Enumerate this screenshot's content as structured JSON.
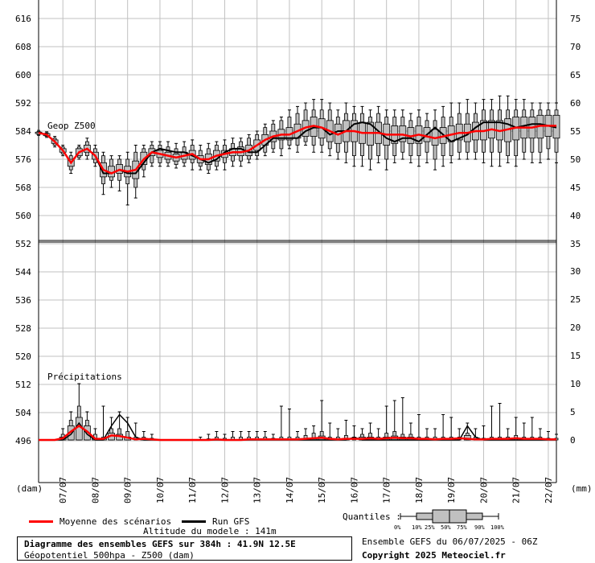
{
  "chart_data": {
    "type": "boxplot-ensemble",
    "xlabel_left": "(dam)",
    "xlabel_right": "(mm)",
    "x_tick_labels": [
      "07/07",
      "08/07",
      "09/07",
      "10/07",
      "11/07",
      "12/07",
      "13/07",
      "14/07",
      "15/07",
      "16/07",
      "17/07",
      "18/07",
      "19/07",
      "20/07",
      "21/07",
      "22/07"
    ],
    "left_axis_ticks": [
      616,
      608,
      600,
      592,
      584,
      576,
      568,
      560,
      552,
      544,
      536,
      528,
      520,
      512,
      504,
      496
    ],
    "right_axis_ticks_top": [
      75,
      70,
      65,
      60,
      55,
      50,
      45,
      40,
      35
    ],
    "right_axis_ticks_bottom": [
      30,
      25,
      20,
      15,
      10,
      5,
      0
    ],
    "left_ylim": [
      490,
      620
    ],
    "right_top_ylim": [
      35,
      75
    ],
    "right_bottom_ylim": [
      0,
      35
    ],
    "grid": true,
    "geop": {
      "label": "Geop Z500",
      "unit": "dam",
      "times_h": [
        0,
        6,
        12,
        18,
        24,
        30,
        36,
        42,
        48,
        54,
        60,
        66,
        72,
        78,
        84,
        90,
        96,
        102,
        108,
        114,
        120,
        126,
        132,
        138,
        144,
        150,
        156,
        162,
        168,
        174,
        180,
        186,
        192,
        198,
        204,
        210,
        216,
        222,
        228,
        234,
        240,
        246,
        252,
        258,
        264,
        270,
        276,
        282,
        288,
        294,
        300,
        306,
        312,
        318,
        324,
        330,
        336,
        342,
        348,
        354,
        360,
        366,
        372,
        378,
        384
      ],
      "mean": [
        583.5,
        583,
        581,
        578.5,
        575,
        578,
        579,
        577,
        573,
        572,
        573,
        572.5,
        573,
        576,
        578,
        577.5,
        577,
        576.5,
        577,
        577.5,
        576,
        576,
        577,
        577.5,
        578,
        578,
        578.5,
        580,
        581.5,
        582.5,
        583,
        583,
        584,
        585,
        585.5,
        585,
        584,
        583,
        584,
        584,
        583.5,
        583.5,
        583.5,
        583,
        583,
        583,
        582.5,
        583,
        582.5,
        582,
        582.5,
        583,
        583.5,
        583.5,
        584,
        584,
        584.5,
        584,
        584.5,
        585,
        585,
        585,
        585.5,
        585.5,
        585.5
      ],
      "gfs": [
        583.5,
        583,
        581,
        578.5,
        575,
        578,
        579,
        577,
        572,
        572,
        573,
        572,
        572,
        575,
        578,
        579,
        578.5,
        578,
        578,
        577,
        576,
        575,
        576,
        578,
        579,
        579,
        578,
        578,
        580,
        582,
        582,
        582,
        582,
        584,
        585,
        585,
        583,
        584,
        584,
        586,
        586.5,
        586,
        584,
        582,
        581,
        582,
        582,
        581,
        583,
        585,
        583,
        581,
        582,
        583,
        585,
        586.5,
        586.5,
        586.5,
        586,
        585,
        585.5,
        586,
        586,
        585.5,
        585
      ],
      "q10": [
        583,
        582.5,
        580,
        577.5,
        573,
        576.5,
        577,
        575,
        569,
        570,
        570,
        569,
        568,
        573,
        575,
        575,
        575,
        574.5,
        575,
        575,
        574,
        573,
        574,
        575,
        575.5,
        575.5,
        576,
        577,
        578,
        579,
        579,
        580,
        580,
        581,
        580,
        580,
        579,
        578,
        578,
        577,
        577,
        576,
        577,
        576,
        577,
        578,
        577,
        577,
        578,
        576,
        577,
        577,
        578,
        578,
        578,
        578,
        578,
        578,
        577,
        577,
        578,
        578,
        578,
        579,
        578
      ],
      "q25": [
        583.3,
        582.7,
        580.5,
        578,
        574,
        577,
        578,
        576,
        571,
        571,
        572,
        571,
        570.5,
        574.5,
        577,
        576.5,
        576,
        575.5,
        576,
        576,
        575,
        574.5,
        575.5,
        576.5,
        577,
        577,
        577,
        578.5,
        580,
        581,
        581.5,
        581.5,
        582,
        582.5,
        582.5,
        582,
        581,
        580.5,
        581,
        581,
        580.5,
        580,
        580.5,
        580,
        580.5,
        581,
        580.5,
        580.5,
        581,
        580,
        580.5,
        581,
        581.5,
        581,
        581.5,
        581.5,
        582,
        581.5,
        581,
        581.5,
        582,
        582,
        582,
        582.5,
        582
      ],
      "q75": [
        583.7,
        583.3,
        581.5,
        579,
        576,
        579,
        580,
        578,
        575,
        574,
        574.5,
        574,
        575.5,
        578,
        579,
        578.5,
        578,
        577.5,
        578,
        578.5,
        577,
        577.5,
        578.5,
        578.5,
        579,
        579.5,
        580,
        581.5,
        583,
        584,
        584.5,
        585,
        586,
        587,
        588,
        587.5,
        587,
        586,
        587,
        587,
        586.5,
        586.5,
        586.5,
        586,
        585.5,
        585.5,
        585,
        585.5,
        585,
        584.5,
        585,
        585.5,
        586,
        586,
        586.5,
        587,
        587,
        587,
        587.5,
        588,
        588,
        588,
        588.5,
        588.5,
        588.5
      ],
      "q90": [
        583.9,
        583.5,
        582,
        579.5,
        577,
        579.5,
        581,
        579,
        577,
        576,
        576,
        576,
        578,
        579,
        580,
        580,
        579.5,
        579,
        579.5,
        580,
        578.5,
        579,
        580,
        580,
        580.5,
        581,
        582,
        583,
        585,
        586,
        587,
        588,
        589,
        590,
        590,
        590,
        590,
        588,
        589,
        589,
        589,
        588,
        589,
        588,
        588,
        588,
        587,
        588,
        587,
        587,
        588,
        588,
        589,
        589,
        589,
        590,
        590,
        590,
        590,
        590,
        590,
        590,
        590,
        590,
        590
      ],
      "min": [
        582.8,
        582.2,
        579.5,
        577,
        572,
        576,
        576,
        574,
        566,
        568,
        567,
        563,
        565,
        571,
        574,
        574,
        574,
        573.5,
        574,
        573,
        573,
        572,
        573,
        573,
        574,
        574,
        575,
        576,
        577,
        578,
        577,
        579,
        578,
        580,
        578,
        578,
        577,
        576,
        575,
        574,
        574,
        573,
        575,
        573,
        575,
        576,
        575,
        574,
        575,
        573,
        574,
        575,
        576,
        576,
        576,
        575,
        574,
        574,
        575,
        574,
        576,
        575,
        575,
        576,
        575
      ],
      "max": [
        584.2,
        583.8,
        582.5,
        580,
        578,
        580,
        582,
        580,
        578,
        577,
        577,
        578,
        580,
        580,
        581,
        581,
        581,
        580.5,
        581,
        581.5,
        580,
        580.5,
        581,
        581.5,
        582,
        582,
        583,
        584,
        586,
        587,
        588,
        590,
        591,
        592,
        593,
        593,
        592,
        590,
        592,
        591,
        591,
        590,
        591,
        590,
        590,
        590,
        589,
        590,
        589,
        590,
        591,
        592,
        592,
        593,
        592,
        593,
        593,
        594,
        594,
        593,
        593,
        592,
        592,
        592,
        592
      ]
    },
    "precip": {
      "label": "Précipitations",
      "unit": "mm",
      "times_h": [
        0,
        6,
        12,
        18,
        24,
        30,
        36,
        42,
        48,
        54,
        60,
        66,
        72,
        78,
        84,
        90,
        96,
        102,
        108,
        114,
        120,
        126,
        132,
        138,
        144,
        150,
        156,
        162,
        168,
        174,
        180,
        186,
        192,
        198,
        204,
        210,
        216,
        222,
        228,
        234,
        240,
        246,
        252,
        258,
        264,
        270,
        276,
        282,
        288,
        294,
        300,
        306,
        312,
        318,
        324,
        330,
        336,
        342,
        348,
        354,
        360,
        366,
        372,
        378,
        384
      ],
      "mean": [
        0,
        0,
        0,
        0.3,
        1.5,
        2.5,
        1.5,
        0.2,
        0.2,
        0.8,
        0.7,
        0.4,
        0.1,
        0.2,
        0.1,
        0,
        0,
        0,
        0,
        0,
        0,
        0,
        0.1,
        0,
        0,
        0,
        0.1,
        0.1,
        0.1,
        0.1,
        0.1,
        0.1,
        0.1,
        0.2,
        0.3,
        0.4,
        0.2,
        0.1,
        0.2,
        0.2,
        0.2,
        0.3,
        0.2,
        0.3,
        0.4,
        0.3,
        0.3,
        0.2,
        0.2,
        0.1,
        0.2,
        0.2,
        0.3,
        0.2,
        0.1,
        0.1,
        0.2,
        0.2,
        0.2,
        0.3,
        0.2,
        0.2,
        0.2,
        0.1,
        0.1
      ],
      "gfs": [
        0,
        0,
        0,
        0,
        1,
        3,
        1,
        0,
        0,
        2.5,
        4.5,
        3,
        0.5,
        0,
        0,
        0,
        0,
        0,
        0,
        0,
        0,
        0,
        0,
        0,
        0,
        0,
        0,
        0,
        0,
        0,
        0,
        0,
        0,
        0,
        0,
        0,
        0,
        0,
        0,
        0.5,
        0,
        0,
        0,
        0,
        0,
        0,
        0,
        0,
        0,
        0,
        0,
        0,
        0,
        2.5,
        0.5,
        0,
        0,
        0,
        0,
        0,
        0,
        0,
        0,
        0,
        0
      ],
      "q75": [
        0,
        0,
        0,
        0.5,
        2.5,
        4,
        2.5,
        0.3,
        0.2,
        1.2,
        1,
        0.5,
        0,
        0.3,
        0,
        0,
        0,
        0,
        0,
        0,
        0,
        0,
        0,
        0,
        0,
        0,
        0,
        0,
        0,
        0,
        0,
        0,
        0,
        0,
        0.3,
        0.7,
        0,
        0,
        0.3,
        0,
        0.5,
        0.5,
        0,
        0.5,
        0.7,
        0.5,
        0.5,
        0,
        0,
        0,
        0,
        0,
        0,
        0.8,
        0,
        0,
        0,
        0,
        0,
        0,
        0,
        0,
        0,
        0,
        0
      ],
      "q90": [
        0,
        0,
        0,
        1,
        3.5,
        6,
        3.5,
        1,
        0.5,
        2,
        2,
        1.5,
        0.5,
        0.5,
        0.3,
        0,
        0,
        0,
        0,
        0,
        0.1,
        0.2,
        0.5,
        0.3,
        0.5,
        0.5,
        0.5,
        0.5,
        0.5,
        0.3,
        0.5,
        0.5,
        0.5,
        0.8,
        1.2,
        1.5,
        0.5,
        0.5,
        0.8,
        0.5,
        1,
        1.2,
        0.5,
        1.2,
        1.5,
        1,
        1,
        0.5,
        0.5,
        0.5,
        0.5,
        0.5,
        0.5,
        1.2,
        0.5,
        0.3,
        0.5,
        0.5,
        0.5,
        0.8,
        0.5,
        0.5,
        0.5,
        0.3,
        0.3
      ],
      "max": [
        0,
        0,
        0,
        2,
        5,
        10,
        5,
        2,
        6,
        4,
        5,
        4,
        3,
        1.5,
        1,
        0,
        0,
        0,
        0,
        0,
        0.5,
        1,
        1.5,
        1,
        1.5,
        1.5,
        1.5,
        1.5,
        1.5,
        1,
        6,
        5.5,
        1.5,
        2,
        2.5,
        7,
        3,
        2,
        3.5,
        2.5,
        2,
        3,
        2,
        6,
        7,
        7.5,
        3,
        4.5,
        2,
        2,
        4.5,
        4,
        2,
        3,
        2,
        2.5,
        6,
        6.5,
        2,
        4,
        3,
        4,
        2,
        1.5,
        1
      ]
    }
  },
  "legend": {
    "mean_label": "Moyenne des scénarios",
    "mean_color": "#ff0000",
    "gfs_label": "Run GFS",
    "gfs_color": "#000000",
    "altitude": "Altitude du modele : 141m",
    "quantiles_label": "Quantiles :",
    "quantile_ticks": [
      "0%",
      "10%",
      "25%",
      "50%",
      "75%",
      "90%",
      "100%"
    ]
  },
  "footer": {
    "title": "Diagramme des ensembles GEFS sur 384h : 41.9N 12.5E",
    "subtitle": "Géopotentiel 500hpa - Z500 (dam)",
    "ensemble": "Ensemble GEFS du 06/07/2025 - 06Z",
    "copyright": "Copyright 2025 Meteociel.fr"
  },
  "colors": {
    "box_fill": "#c0c0c0",
    "grid": "#c0c0c0"
  }
}
